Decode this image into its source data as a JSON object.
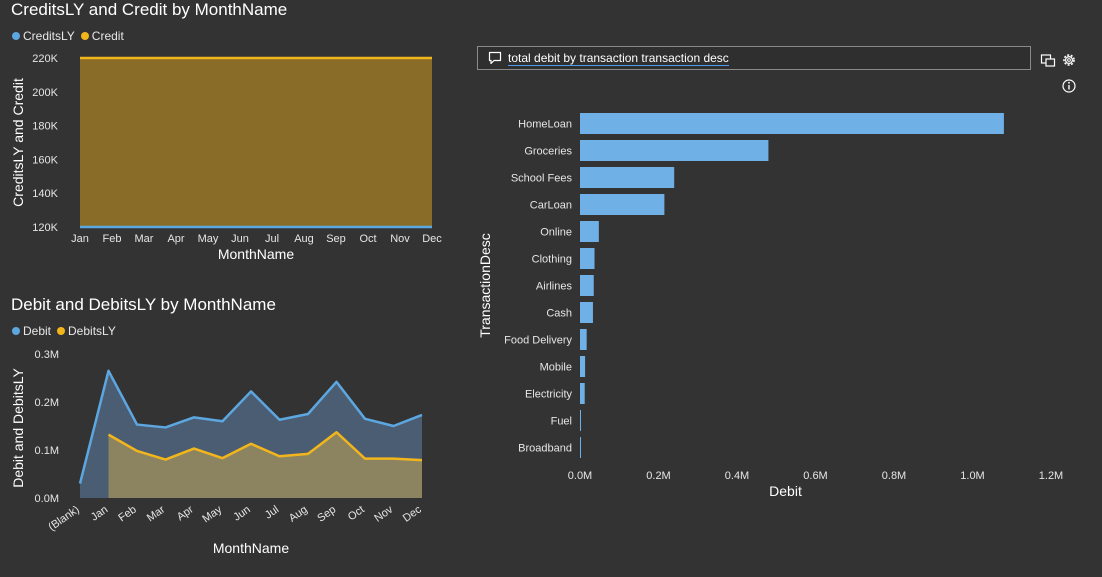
{
  "credit_chart": {
    "title": "CreditsLY and Credit by MonthName",
    "legend": [
      {
        "name": "CreditsLY",
        "color": "#5da7e1"
      },
      {
        "name": "Credit",
        "color": "#f2b61c"
      }
    ]
  },
  "debit_chart": {
    "title": "Debit and DebitsLY by MonthName",
    "legend": [
      {
        "name": "Debit",
        "color": "#5da7e1"
      },
      {
        "name": "DebitsLY",
        "color": "#f2b61c"
      }
    ]
  },
  "qa": {
    "query": "total debit by transaction transaction desc",
    "chat_icon": "speech-bubble-icon",
    "toolbar_icons": [
      "convert-visual-icon",
      "gear-icon",
      "info-icon"
    ]
  },
  "chart_data": [
    {
      "type": "area",
      "title": "CreditsLY and Credit by MonthName",
      "xlabel": "MonthName",
      "ylabel": "CreditsLY and Credit",
      "categories": [
        "Jan",
        "Feb",
        "Mar",
        "Apr",
        "May",
        "Jun",
        "Jul",
        "Aug",
        "Sep",
        "Oct",
        "Nov",
        "Dec"
      ],
      "series": [
        {
          "name": "CreditsLY",
          "values": [
            120000,
            120000,
            120000,
            120000,
            120000,
            120000,
            120000,
            120000,
            120000,
            120000,
            120000,
            120000
          ],
          "color": "#5da7e1"
        },
        {
          "name": "Credit",
          "values": [
            220000,
            220000,
            220000,
            220000,
            220000,
            220000,
            220000,
            220000,
            220000,
            220000,
            220000,
            220000
          ],
          "color": "#f2b61c"
        }
      ],
      "ylim": [
        120000,
        220000
      ],
      "yticks": [
        120000,
        140000,
        160000,
        180000,
        200000,
        220000
      ],
      "yticklabels": [
        "120K",
        "140K",
        "160K",
        "180K",
        "200K",
        "220K"
      ],
      "grid": false,
      "legend_position": "top-left"
    },
    {
      "type": "area",
      "title": "Debit and DebitsLY by MonthName",
      "xlabel": "MonthName",
      "ylabel": "Debit and DebitsLY",
      "categories": [
        "(Blank)",
        "Jan",
        "Feb",
        "Mar",
        "Apr",
        "May",
        "Jun",
        "Jul",
        "Aug",
        "Sep",
        "Oct",
        "Nov",
        "Dec"
      ],
      "series": [
        {
          "name": "Debit",
          "values": [
            0.03,
            0.265,
            0.153,
            0.147,
            0.168,
            0.16,
            0.222,
            0.163,
            0.175,
            0.242,
            0.165,
            0.15,
            0.173
          ],
          "color": "#5da7e1"
        },
        {
          "name": "DebitsLY",
          "values": [
            null,
            0.132,
            0.098,
            0.08,
            0.103,
            0.083,
            0.113,
            0.087,
            0.092,
            0.137,
            0.082,
            0.082,
            0.079
          ],
          "color": "#f2b61c"
        }
      ],
      "y_unit": "M",
      "ylim": [
        0,
        0.3
      ],
      "yticks": [
        0,
        0.1,
        0.2,
        0.3
      ],
      "yticklabels": [
        "0.0M",
        "0.1M",
        "0.2M",
        "0.3M"
      ],
      "grid": false,
      "legend_position": "top-left"
    },
    {
      "type": "bar",
      "orientation": "horizontal",
      "xlabel": "Debit",
      "ylabel": "TransactionDesc",
      "categories": [
        "HomeLoan",
        "Groceries",
        "School Fees",
        "CarLoan",
        "Online",
        "Clothing",
        "Airlines",
        "Cash",
        "Food Delivery",
        "Mobile",
        "Electricity",
        "Fuel",
        "Broadband"
      ],
      "values": [
        1.08,
        0.48,
        0.24,
        0.215,
        0.048,
        0.037,
        0.035,
        0.033,
        0.017,
        0.013,
        0.012,
        0.002,
        0.001
      ],
      "x_unit": "M",
      "xlim": [
        0,
        1.2
      ],
      "xticks": [
        0,
        0.2,
        0.4,
        0.6,
        0.8,
        1.0,
        1.2
      ],
      "xticklabels": [
        "0.0M",
        "0.2M",
        "0.4M",
        "0.6M",
        "0.8M",
        "1.0M",
        "1.2M"
      ],
      "color": "#6fb0e6",
      "grid": false
    }
  ]
}
